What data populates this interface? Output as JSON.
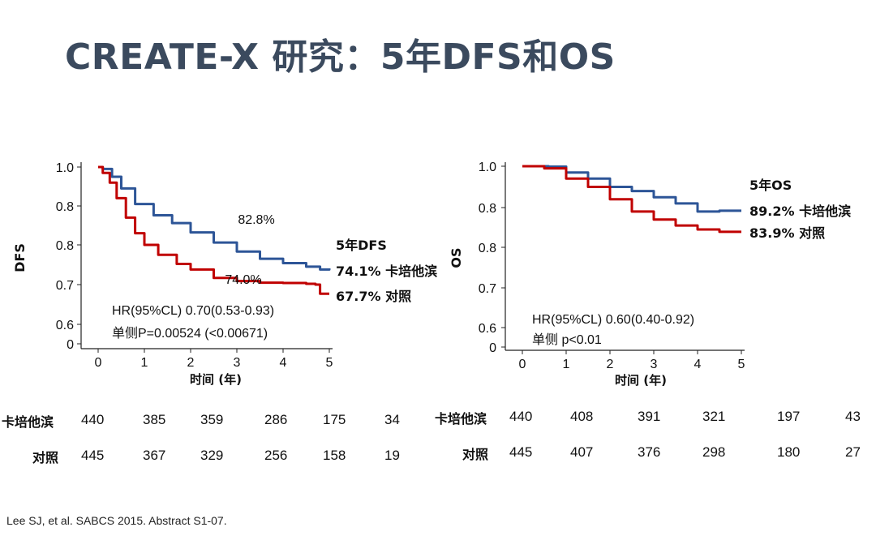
{
  "title": "CREATE-X 研究：5年DFS和OS",
  "reference": "Lee SJ, et al. SABCS 2015. Abstract S1-07.",
  "colors": {
    "capecitabine": "#2d5597",
    "control": "#c00000",
    "title": "#3b4a5e"
  },
  "chart_data": [
    {
      "type": "line",
      "ylabel": "DFS",
      "xlabel": "时间 (年)",
      "x_ticks": [
        "0",
        "1",
        "2",
        "3",
        "4",
        "5"
      ],
      "y_ticks": [
        "0",
        "0.6",
        "0.7",
        "0.8",
        "0.8",
        "1.0"
      ],
      "xlim": [
        0,
        5
      ],
      "ylim": [
        0,
        1.0
      ],
      "legend_title": "5年DFS",
      "series": [
        {
          "name": "卡培他滨",
          "label": "74.1% 卡培他滨",
          "color": "#2d5597",
          "x": [
            0,
            0.1,
            0.3,
            0.5,
            0.8,
            1.2,
            1.6,
            2.0,
            2.5,
            3.0,
            3.5,
            4.0,
            4.5,
            4.8,
            5.0
          ],
          "y": [
            1.0,
            0.995,
            0.975,
            0.945,
            0.905,
            0.876,
            0.856,
            0.832,
            0.806,
            0.783,
            0.765,
            0.754,
            0.745,
            0.738,
            0.741
          ]
        },
        {
          "name": "对照",
          "label": "67.7% 对照",
          "color": "#c00000",
          "x": [
            0,
            0.1,
            0.25,
            0.4,
            0.6,
            0.8,
            1.0,
            1.3,
            1.7,
            2.0,
            2.5,
            3.0,
            3.5,
            4.0,
            4.5,
            4.7,
            4.8,
            5.0
          ],
          "y": [
            1.0,
            0.985,
            0.96,
            0.92,
            0.87,
            0.83,
            0.8,
            0.775,
            0.752,
            0.738,
            0.717,
            0.709,
            0.705,
            0.704,
            0.702,
            0.7,
            0.677,
            0.677
          ]
        }
      ],
      "annotations": [
        "82.8%",
        "74.0%"
      ],
      "stats": [
        "HR(95%CL) 0.70(0.53-0.93)",
        "单侧P=0.00524 (<0.00671)"
      ]
    },
    {
      "type": "line",
      "ylabel": "OS",
      "xlabel": "时间 (年)",
      "x_ticks": [
        "0",
        "1",
        "2",
        "3",
        "4",
        "5"
      ],
      "y_ticks": [
        "0",
        "0.6",
        "0.7",
        "0.8",
        "0.8",
        "1.0"
      ],
      "xlim": [
        0,
        5
      ],
      "ylim": [
        0,
        1.0
      ],
      "legend_title": "5年OS",
      "series": [
        {
          "name": "卡培他滨",
          "label": "89.2% 卡培他滨",
          "color": "#2d5597",
          "x": [
            0,
            0.6,
            1.0,
            1.5,
            2.0,
            2.5,
            3.0,
            3.5,
            4.0,
            4.5,
            5.0
          ],
          "y": [
            1.0,
            0.999,
            0.985,
            0.97,
            0.95,
            0.94,
            0.925,
            0.91,
            0.89,
            0.892,
            0.892
          ]
        },
        {
          "name": "对照",
          "label": "83.9% 对照",
          "color": "#c00000",
          "x": [
            0,
            0.5,
            1.0,
            1.5,
            2.0,
            2.5,
            3.0,
            3.5,
            4.0,
            4.5,
            5.0
          ],
          "y": [
            1.0,
            0.995,
            0.97,
            0.95,
            0.92,
            0.89,
            0.87,
            0.855,
            0.845,
            0.839,
            0.839
          ]
        }
      ],
      "annotations": [],
      "stats": [
        "HR(95%CL) 0.60(0.40-0.92)",
        "单侧 p<0.01"
      ]
    }
  ],
  "risk_tables": [
    {
      "rows": [
        {
          "label": "卡培他滨",
          "values": [
            "440",
            "385",
            "359",
            "286",
            "175",
            "34"
          ]
        },
        {
          "label": "对照",
          "values": [
            "445",
            "367",
            "329",
            "256",
            "158",
            "19"
          ]
        }
      ]
    },
    {
      "rows": [
        {
          "label": "卡培他滨",
          "values": [
            "440",
            "408",
            "391",
            "321",
            "197",
            "43"
          ]
        },
        {
          "label": "对照",
          "values": [
            "445",
            "407",
            "376",
            "298",
            "180",
            "27"
          ]
        }
      ]
    }
  ]
}
